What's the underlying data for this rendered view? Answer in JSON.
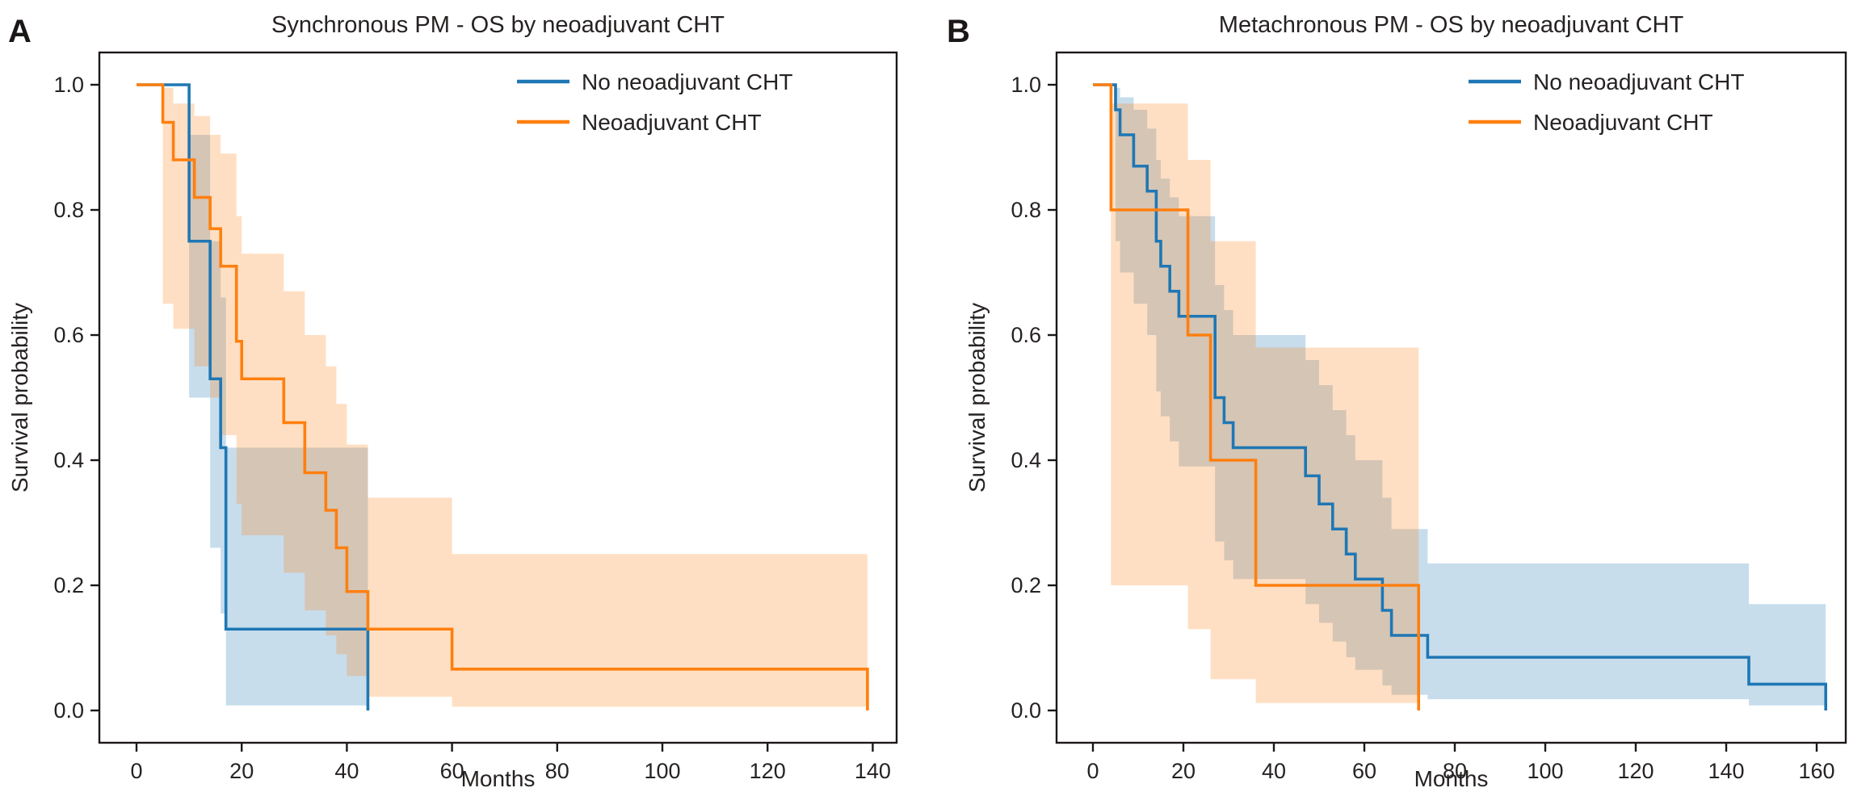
{
  "chart_data": {
    "type": "line",
    "subtype": "kaplan-meier-step-survival",
    "figure_note": "Two-panel overall survival (OS) Kaplan-Meier plot with 95% CI bands",
    "panels": [
      {
        "label": "A",
        "title": "Synchronous PM - OS by neoadjuvant CHT",
        "xlabel": "Months",
        "ylabel": "Survival probability",
        "xticks": [
          0,
          20,
          40,
          60,
          80,
          100,
          120,
          140
        ],
        "yticks": [
          0.0,
          0.2,
          0.4,
          0.6,
          0.8,
          1.0
        ],
        "xlim": [
          0,
          140
        ],
        "ylim": [
          0,
          1
        ],
        "grid": false,
        "legend_position": "upper right",
        "series": [
          {
            "name": "No neoadjuvant CHT",
            "color": "#1f77b4",
            "band_opacity": 0.25,
            "steps": [
              [
                0,
                1.0
              ],
              [
                10,
                0.75
              ],
              [
                14,
                0.53
              ],
              [
                16,
                0.42
              ],
              [
                17,
                0.13
              ],
              [
                44,
                0.0
              ]
            ],
            "ci": [
              [
                10,
                0.5,
                0.92
              ],
              [
                14,
                0.26,
                0.75
              ],
              [
                16,
                0.155,
                0.66
              ],
              [
                17,
                0.008,
                0.42
              ]
            ],
            "ci_end": 44
          },
          {
            "name": "Neoadjuvant CHT",
            "color": "#ff7f0e",
            "band_opacity": 0.25,
            "steps": [
              [
                0,
                1.0
              ],
              [
                5,
                0.94
              ],
              [
                7,
                0.88
              ],
              [
                11,
                0.82
              ],
              [
                14,
                0.77
              ],
              [
                16,
                0.71
              ],
              [
                19,
                0.59
              ],
              [
                20,
                0.53
              ],
              [
                28,
                0.46
              ],
              [
                32,
                0.38
              ],
              [
                36,
                0.32
              ],
              [
                38,
                0.26
              ],
              [
                40,
                0.19
              ],
              [
                44,
                0.13
              ],
              [
                60,
                0.066
              ],
              [
                139,
                0.0
              ]
            ],
            "ci": [
              [
                5,
                0.65,
                0.995
              ],
              [
                7,
                0.61,
                0.97
              ],
              [
                11,
                0.55,
                0.95
              ],
              [
                14,
                0.5,
                0.92
              ],
              [
                16,
                0.44,
                0.89
              ],
              [
                19,
                0.33,
                0.79
              ],
              [
                20,
                0.28,
                0.73
              ],
              [
                28,
                0.22,
                0.67
              ],
              [
                32,
                0.16,
                0.6
              ],
              [
                36,
                0.12,
                0.55
              ],
              [
                38,
                0.09,
                0.49
              ],
              [
                40,
                0.055,
                0.425
              ],
              [
                44,
                0.022,
                0.34
              ],
              [
                60,
                0.006,
                0.25
              ]
            ],
            "ci_end": 139
          }
        ]
      },
      {
        "label": "B",
        "title": "Metachronous PM - OS by neoadjuvant CHT",
        "xlabel": "Months",
        "ylabel": "Survival probability",
        "xticks": [
          0,
          20,
          40,
          60,
          80,
          100,
          120,
          140,
          160
        ],
        "yticks": [
          0.0,
          0.2,
          0.4,
          0.6,
          0.8,
          1.0
        ],
        "xlim": [
          0,
          160
        ],
        "ylim": [
          0,
          1
        ],
        "grid": false,
        "legend_position": "upper right",
        "series": [
          {
            "name": "No neoadjuvant CHT",
            "color": "#1f77b4",
            "band_opacity": 0.25,
            "steps": [
              [
                0,
                1.0
              ],
              [
                5,
                0.96
              ],
              [
                6,
                0.92
              ],
              [
                9,
                0.87
              ],
              [
                12,
                0.83
              ],
              [
                14,
                0.75
              ],
              [
                15,
                0.71
              ],
              [
                17,
                0.67
              ],
              [
                19,
                0.63
              ],
              [
                27,
                0.5
              ],
              [
                29,
                0.46
              ],
              [
                31,
                0.42
              ],
              [
                47,
                0.375
              ],
              [
                50,
                0.33
              ],
              [
                53,
                0.29
              ],
              [
                56,
                0.25
              ],
              [
                58,
                0.21
              ],
              [
                64,
                0.16
              ],
              [
                66,
                0.12
              ],
              [
                74,
                0.085
              ],
              [
                145,
                0.042
              ],
              [
                162,
                0.0
              ]
            ],
            "ci": [
              [
                5,
                0.75,
                0.995
              ],
              [
                6,
                0.7,
                0.98
              ],
              [
                9,
                0.65,
                0.96
              ],
              [
                12,
                0.6,
                0.93
              ],
              [
                14,
                0.51,
                0.88
              ],
              [
                15,
                0.47,
                0.85
              ],
              [
                17,
                0.43,
                0.82
              ],
              [
                19,
                0.39,
                0.79
              ],
              [
                27,
                0.27,
                0.68
              ],
              [
                29,
                0.24,
                0.64
              ],
              [
                31,
                0.21,
                0.6
              ],
              [
                47,
                0.17,
                0.56
              ],
              [
                50,
                0.14,
                0.52
              ],
              [
                53,
                0.11,
                0.48
              ],
              [
                56,
                0.085,
                0.44
              ],
              [
                58,
                0.065,
                0.4
              ],
              [
                64,
                0.04,
                0.34
              ],
              [
                66,
                0.025,
                0.29
              ],
              [
                74,
                0.018,
                0.235
              ],
              [
                145,
                0.008,
                0.17
              ]
            ],
            "ci_end": 162
          },
          {
            "name": "Neoadjuvant CHT",
            "color": "#ff7f0e",
            "band_opacity": 0.25,
            "steps": [
              [
                0,
                1.0
              ],
              [
                4,
                0.8
              ],
              [
                21,
                0.6
              ],
              [
                26,
                0.4
              ],
              [
                36,
                0.2
              ],
              [
                72,
                0.0
              ]
            ],
            "ci": [
              [
                4,
                0.2,
                0.97
              ],
              [
                21,
                0.13,
                0.88
              ],
              [
                26,
                0.05,
                0.75
              ],
              [
                36,
                0.012,
                0.58
              ]
            ],
            "ci_end": 72
          }
        ]
      }
    ]
  }
}
